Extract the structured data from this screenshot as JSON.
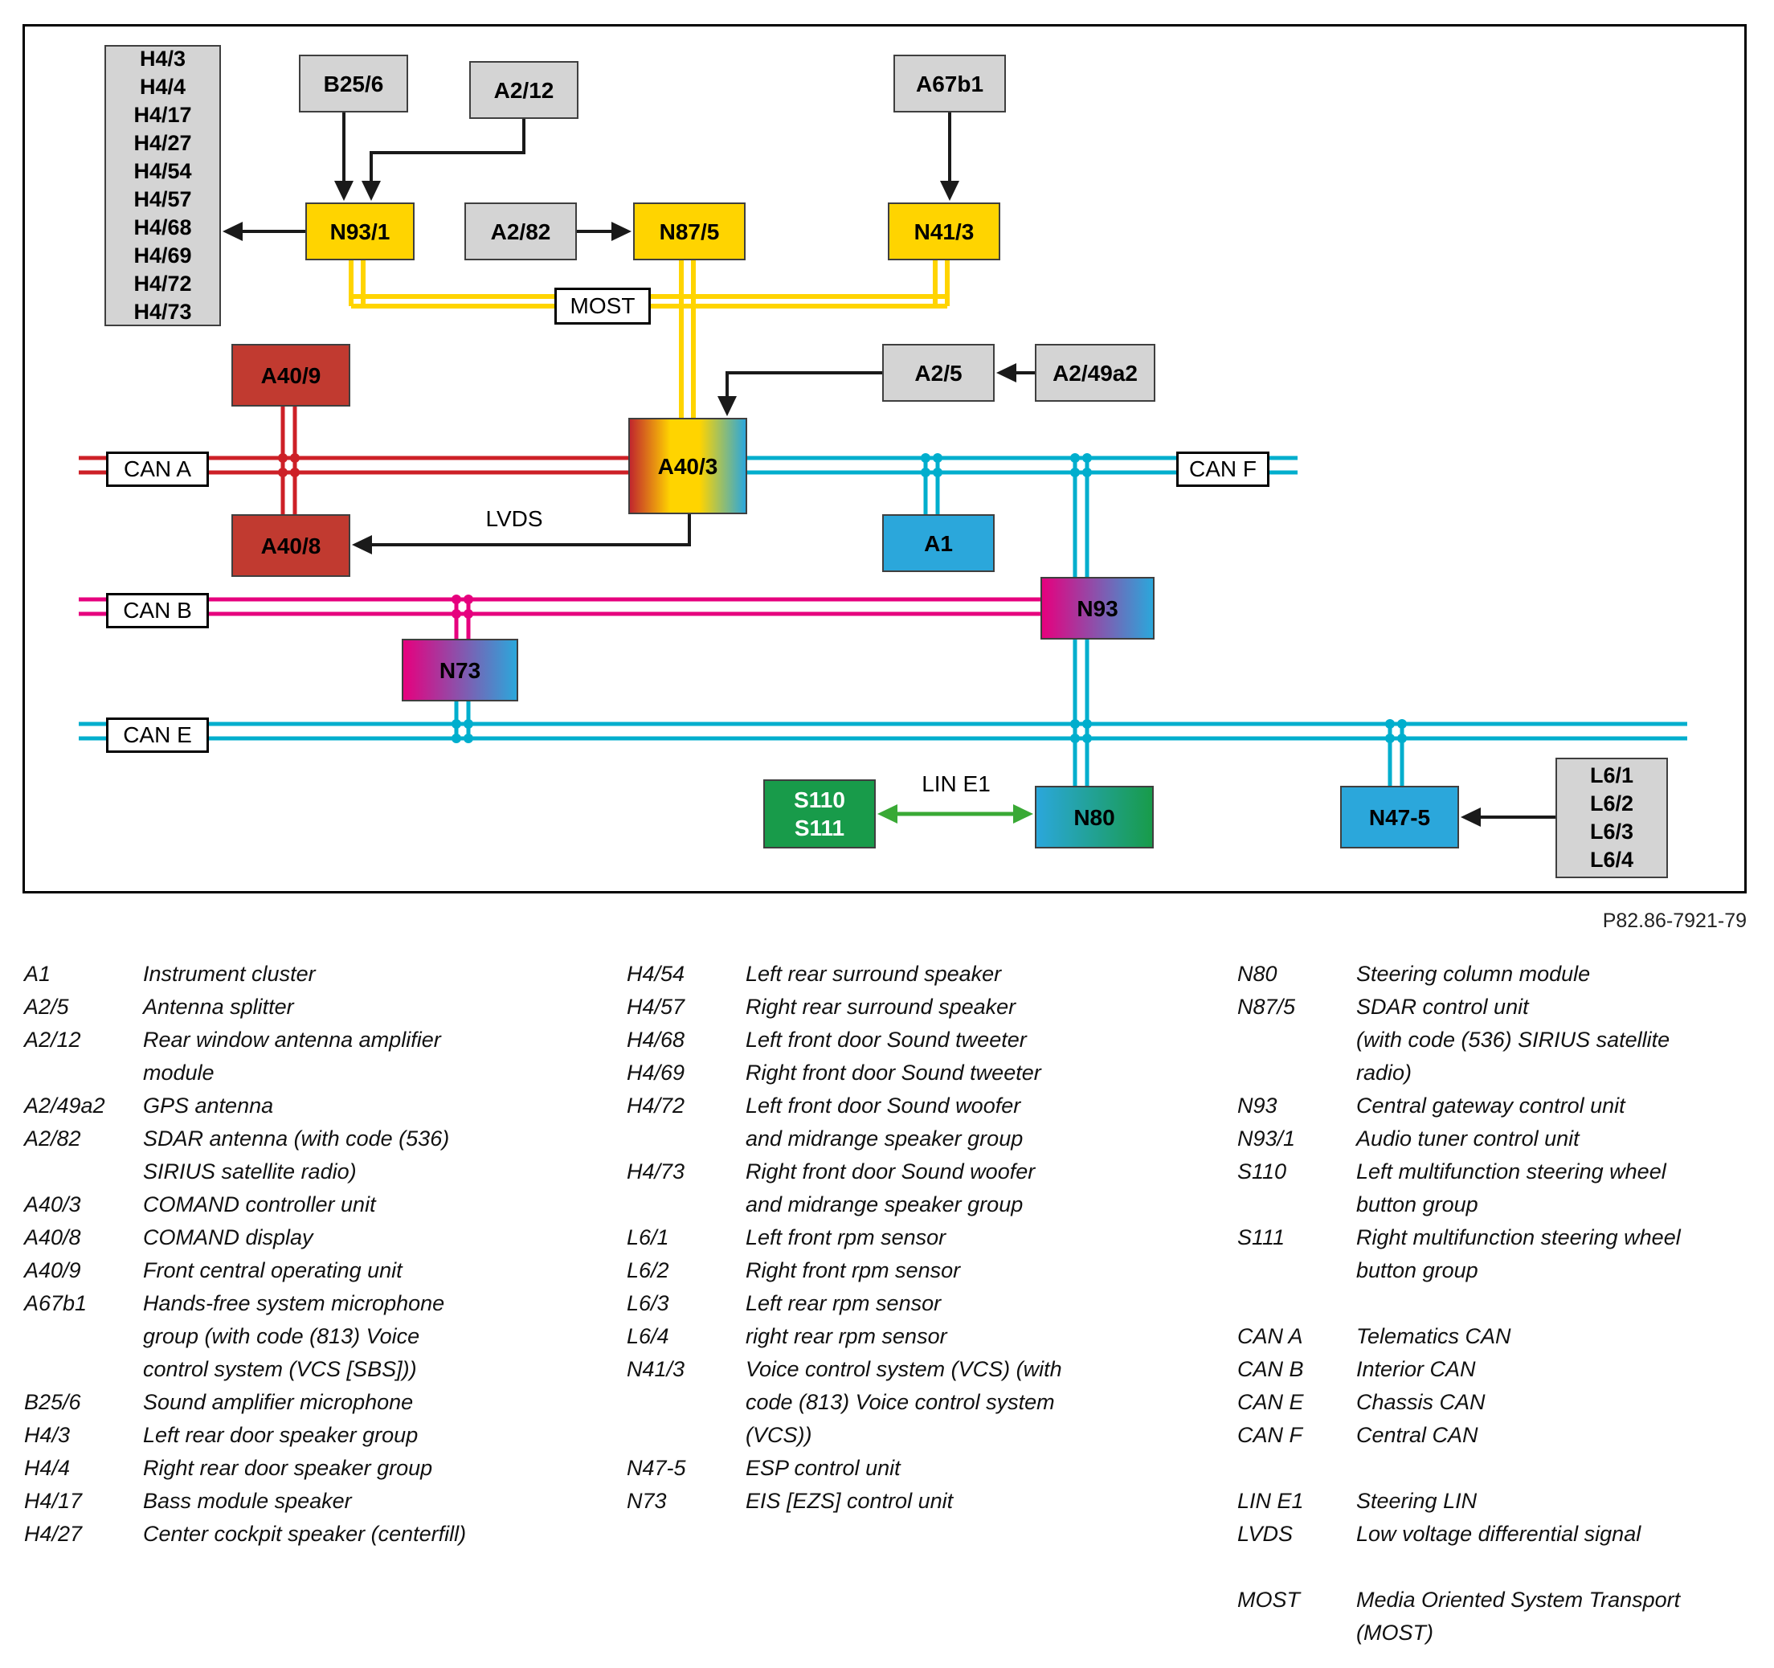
{
  "colors": {
    "node_gray": "#d4d4d4",
    "node_yellow": "#ffd400",
    "node_red": "#c13a30",
    "node_blue": "#2ba7db",
    "node_green": "#189b4a",
    "bus_can_a_red": "#cd2027",
    "bus_can_b_magenta": "#e6007e",
    "bus_can_ef_cyan": "#00aecd",
    "bus_most_yellow": "#ffd400",
    "bus_lin_green": "#39a935",
    "arrow_black": "#1a1a1a"
  },
  "diagram": {
    "ref_number": "P82.86-7921-79",
    "nodes": {
      "h4_list": "H4/3\nH4/4\nH4/17\nH4/27\nH4/54\nH4/57\nH4/68\nH4/69\nH4/72\nH4/73",
      "b25_6": "B25/6",
      "a2_12": "A2/12",
      "a67b1": "A67b1",
      "n93_1": "N93/1",
      "a2_82": "A2/82",
      "n87_5": "N87/5",
      "n41_3": "N41/3",
      "most": "MOST",
      "a2_5": "A2/5",
      "a2_49a2": "A2/49a2",
      "a40_9": "A40/9",
      "a40_3": "A40/3",
      "a40_8": "A40/8",
      "a1": "A1",
      "n93": "N93",
      "n73": "N73",
      "s110_s111": "S110\nS111",
      "n80": "N80",
      "n47_5": "N47-5",
      "l6_list": "L6/1\nL6/2\nL6/3\nL6/4",
      "can_a": "CAN A",
      "can_b": "CAN B",
      "can_e": "CAN E",
      "can_f": "CAN F",
      "lvds": "LVDS",
      "lin_e1": "LIN E1"
    }
  },
  "legend": {
    "columns": [
      [
        {
          "code": "A1",
          "desc": "Instrument cluster"
        },
        {
          "code": "A2/5",
          "desc": "Antenna splitter"
        },
        {
          "code": "A2/12",
          "desc": "Rear window antenna amplifier\nmodule"
        },
        {
          "code": "A2/49a2",
          "desc": "GPS antenna"
        },
        {
          "code": "A2/82",
          "desc": "SDAR antenna (with code (536)\nSIRIUS satellite radio)"
        },
        {
          "code": "A40/3",
          "desc": "COMAND controller unit"
        },
        {
          "code": "A40/8",
          "desc": "COMAND display"
        },
        {
          "code": "A40/9",
          "desc": "Front central operating unit"
        },
        {
          "code": "A67b1",
          "desc": "Hands-free system microphone\ngroup (with code (813) Voice\ncontrol system (VCS [SBS]))"
        },
        {
          "code": "B25/6",
          "desc": "Sound amplifier microphone"
        },
        {
          "code": "H4/3",
          "desc": "Left rear door speaker group"
        },
        {
          "code": "H4/4",
          "desc": "Right rear door speaker group"
        },
        {
          "code": "H4/17",
          "desc": "Bass module speaker"
        },
        {
          "code": "H4/27",
          "desc": "Center cockpit speaker (centerfill)"
        }
      ],
      [
        {
          "code": "H4/54",
          "desc": "Left rear surround speaker"
        },
        {
          "code": "H4/57",
          "desc": "Right rear surround speaker"
        },
        {
          "code": "H4/68",
          "desc": "Left front door Sound tweeter"
        },
        {
          "code": "H4/69",
          "desc": "Right front door Sound tweeter"
        },
        {
          "code": "H4/72",
          "desc": "Left front door Sound woofer\nand midrange speaker group"
        },
        {
          "code": "H4/73",
          "desc": "Right front door Sound woofer\nand midrange speaker group"
        },
        {
          "code": "L6/1",
          "desc": "Left front rpm sensor"
        },
        {
          "code": "L6/2",
          "desc": "Right front rpm sensor"
        },
        {
          "code": "L6/3",
          "desc": "Left rear rpm sensor"
        },
        {
          "code": "L6/4",
          "desc": "right rear rpm sensor"
        },
        {
          "code": "N41/3",
          "desc": "Voice control system (VCS) (with\ncode (813) Voice control system\n(VCS))"
        },
        {
          "code": "N47-5",
          "desc": "ESP control unit"
        },
        {
          "code": "N73",
          "desc": "EIS [EZS] control unit"
        }
      ],
      [
        {
          "code": "N80",
          "desc": "Steering column module"
        },
        {
          "code": "N87/5",
          "desc": "SDAR control unit\n(with code (536) SIRIUS satellite\nradio)"
        },
        {
          "code": "N93",
          "desc": "Central gateway control unit"
        },
        {
          "code": "N93/1",
          "desc": "Audio tuner control unit"
        },
        {
          "code": "S110",
          "desc": "Left multifunction steering wheel\nbutton group"
        },
        {
          "code": "S111",
          "desc": "Right multifunction steering wheel\nbutton group"
        },
        {
          "code": "CAN A",
          "desc": "Telematics CAN",
          "gap": true
        },
        {
          "code": "CAN B",
          "desc": "Interior CAN"
        },
        {
          "code": "CAN E",
          "desc": "Chassis CAN"
        },
        {
          "code": "CAN F",
          "desc": "Central CAN"
        },
        {
          "code": "LIN E1",
          "desc": "Steering LIN",
          "gap": true
        },
        {
          "code": "LVDS",
          "desc": "Low voltage differential signal"
        },
        {
          "code": "MOST",
          "desc": "Media Oriented System Transport\n(MOST)",
          "gap": true
        }
      ]
    ]
  }
}
